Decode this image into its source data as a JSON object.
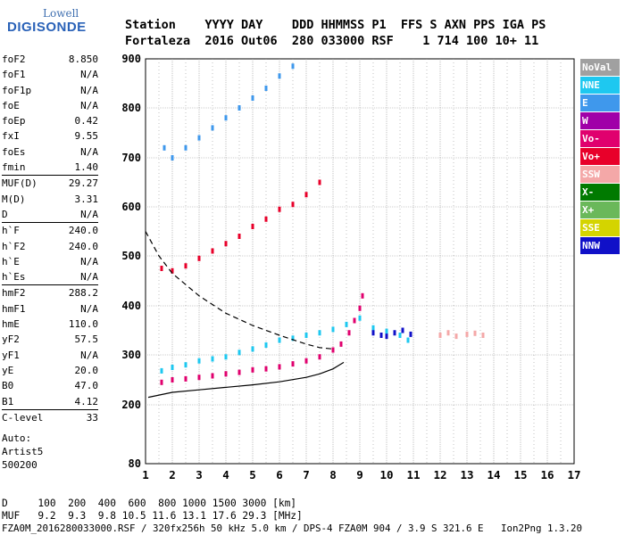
{
  "logo": {
    "line1": "Lowell",
    "line2": "DIGISONDE"
  },
  "header": {
    "line1": "Station    YYYY DAY    DDD HHMMSS P1  FFS S AXN PPS IGA PS",
    "line2": "Fortaleza  2016 Out06  280 033000 RSF    1 714 100 10+ 11"
  },
  "params": [
    {
      "label": "foF2",
      "value": "8.850"
    },
    {
      "label": "foF1",
      "value": "N/A"
    },
    {
      "label": "foF1p",
      "value": "N/A"
    },
    {
      "label": "foE",
      "value": "N/A"
    },
    {
      "label": "foEp",
      "value": "0.42"
    },
    {
      "label": "fxI",
      "value": "9.55"
    },
    {
      "label": "foEs",
      "value": "N/A"
    },
    {
      "label": "fmin",
      "value": "1.40",
      "sep": true
    },
    {
      "label": "MUF(D)",
      "value": "29.27"
    },
    {
      "label": "M(D)",
      "value": "3.31"
    },
    {
      "label": "D",
      "value": "N/A",
      "sep": true
    },
    {
      "label": "h`F",
      "value": "240.0"
    },
    {
      "label": "h`F2",
      "value": "240.0"
    },
    {
      "label": "h`E",
      "value": "N/A"
    },
    {
      "label": "h`Es",
      "value": "N/A",
      "sep": true
    },
    {
      "label": "hmF2",
      "value": "288.2"
    },
    {
      "label": "hmF1",
      "value": "N/A"
    },
    {
      "label": "hmE",
      "value": "110.0"
    },
    {
      "label": "yF2",
      "value": "57.5"
    },
    {
      "label": "yF1",
      "value": "N/A"
    },
    {
      "label": "yE",
      "value": "20.0"
    },
    {
      "label": "B0",
      "value": "47.0"
    },
    {
      "label": "B1",
      "value": "4.12",
      "sep": true
    },
    {
      "label": "C-level",
      "value": "33"
    }
  ],
  "auto": {
    "line1": "Auto:",
    "line2": "Artist5",
    "line3": "500200"
  },
  "freq_table": {
    "line1": "D     100  200  400  600  800 1000 1500 3000 [km]",
    "line2": "MUF   9.2  9.3  9.8 10.5 11.6 13.1 17.6 29.3 [MHz]"
  },
  "footer": "FZA0M_2016280033000.RSF / 320fx256h 50 kHz 5.0 km / DPS-4 FZA0M 904 / 3.9 S 321.6 E   Ion2Png 1.3.20",
  "legend": [
    {
      "label": "NoVal",
      "color": "#a0a0a0"
    },
    {
      "label": "NNE",
      "color": "#1ec8f0"
    },
    {
      "label": "E",
      "color": "#3f98ec"
    },
    {
      "label": "W",
      "color": "#a000a8"
    },
    {
      "label": "Vo-",
      "color": "#e0006e"
    },
    {
      "label": "Vo+",
      "color": "#e8002a"
    },
    {
      "label": "SSW",
      "color": "#f4a8a8"
    },
    {
      "label": "X-",
      "color": "#007a00"
    },
    {
      "label": "X+",
      "color": "#6ab85a"
    },
    {
      "label": "SSE",
      "color": "#d4d400"
    },
    {
      "label": "NNW",
      "color": "#1010c8"
    }
  ],
  "chart_data": {
    "type": "scatter",
    "xlabel": "",
    "ylabel": "",
    "xlim": [
      1,
      17
    ],
    "ylim": [
      80,
      900
    ],
    "x_ticks": [
      "1",
      "2",
      "3",
      "4",
      "5",
      "6",
      "7",
      "8",
      "9",
      "10",
      "11",
      "12",
      "13",
      "14",
      "15",
      "16",
      "17"
    ],
    "y_ticks": [
      "80",
      "200",
      "300",
      "400",
      "500",
      "600",
      "700",
      "800",
      "900"
    ],
    "grid": true,
    "series": [
      {
        "kind": "points",
        "color": "#e0006e",
        "points": [
          [
            1.6,
            245
          ],
          [
            2,
            250
          ],
          [
            2.5,
            252
          ],
          [
            3,
            255
          ],
          [
            3.5,
            258
          ],
          [
            4,
            262
          ],
          [
            4.5,
            265
          ],
          [
            5,
            270
          ],
          [
            5.5,
            272
          ],
          [
            6,
            276
          ],
          [
            6.5,
            282
          ],
          [
            7,
            288
          ],
          [
            7.5,
            296
          ],
          [
            8,
            310
          ],
          [
            8.3,
            322
          ],
          [
            8.6,
            345
          ],
          [
            8.8,
            370
          ],
          [
            9,
            395
          ],
          [
            9.1,
            420
          ]
        ]
      },
      {
        "kind": "points",
        "color": "#1ec8f0",
        "points": [
          [
            1.6,
            268
          ],
          [
            2,
            275
          ],
          [
            2.5,
            280
          ],
          [
            3,
            288
          ],
          [
            3.5,
            292
          ],
          [
            4,
            296
          ],
          [
            4.5,
            305
          ],
          [
            5,
            312
          ],
          [
            5.5,
            320
          ],
          [
            6,
            330
          ],
          [
            6.5,
            334
          ],
          [
            7,
            340
          ],
          [
            7.5,
            345
          ],
          [
            8,
            352
          ],
          [
            8.5,
            362
          ],
          [
            9,
            375
          ],
          [
            9.5,
            355
          ],
          [
            10,
            348
          ],
          [
            10.5,
            340
          ],
          [
            10.8,
            330
          ]
        ]
      },
      {
        "kind": "points",
        "color": "#e8002a",
        "points": [
          [
            1.6,
            475
          ],
          [
            2,
            470
          ],
          [
            2.5,
            480
          ],
          [
            3,
            495
          ],
          [
            3.5,
            510
          ],
          [
            4,
            525
          ],
          [
            4.5,
            540
          ],
          [
            5,
            560
          ],
          [
            5.5,
            575
          ],
          [
            6,
            595
          ],
          [
            6.5,
            605
          ],
          [
            7,
            625
          ],
          [
            7.5,
            650
          ]
        ]
      },
      {
        "kind": "points",
        "color": "#3f98ec",
        "points": [
          [
            1.7,
            720
          ],
          [
            2,
            700
          ],
          [
            2.5,
            720
          ],
          [
            3,
            740
          ],
          [
            3.5,
            760
          ],
          [
            4,
            780
          ],
          [
            4.5,
            800
          ],
          [
            5,
            820
          ],
          [
            5.5,
            840
          ],
          [
            6,
            865
          ],
          [
            6.5,
            885
          ]
        ]
      },
      {
        "kind": "points",
        "color": "#1010c8",
        "points": [
          [
            9.5,
            345
          ],
          [
            9.8,
            340
          ],
          [
            10,
            338
          ],
          [
            10.3,
            345
          ],
          [
            10.6,
            350
          ],
          [
            10.9,
            342
          ]
        ]
      },
      {
        "kind": "points",
        "color": "#f4a8a8",
        "points": [
          [
            12,
            340
          ],
          [
            12.3,
            345
          ],
          [
            12.6,
            338
          ],
          [
            13,
            342
          ],
          [
            13.3,
            344
          ],
          [
            13.6,
            340
          ]
        ]
      },
      {
        "kind": "line",
        "style": "solid",
        "color": "#000000",
        "points": [
          [
            1.1,
            215
          ],
          [
            2,
            225
          ],
          [
            3,
            230
          ],
          [
            4,
            235
          ],
          [
            5,
            240
          ],
          [
            6,
            246
          ],
          [
            7,
            255
          ],
          [
            7.5,
            262
          ],
          [
            8,
            272
          ],
          [
            8.4,
            285
          ]
        ]
      },
      {
        "kind": "line",
        "style": "dashed",
        "color": "#000000",
        "points": [
          [
            1,
            550
          ],
          [
            1.5,
            500
          ],
          [
            2,
            465
          ],
          [
            3,
            420
          ],
          [
            4,
            385
          ],
          [
            5,
            360
          ],
          [
            6,
            340
          ],
          [
            7,
            322
          ],
          [
            7.5,
            315
          ],
          [
            8,
            312
          ]
        ]
      }
    ]
  }
}
